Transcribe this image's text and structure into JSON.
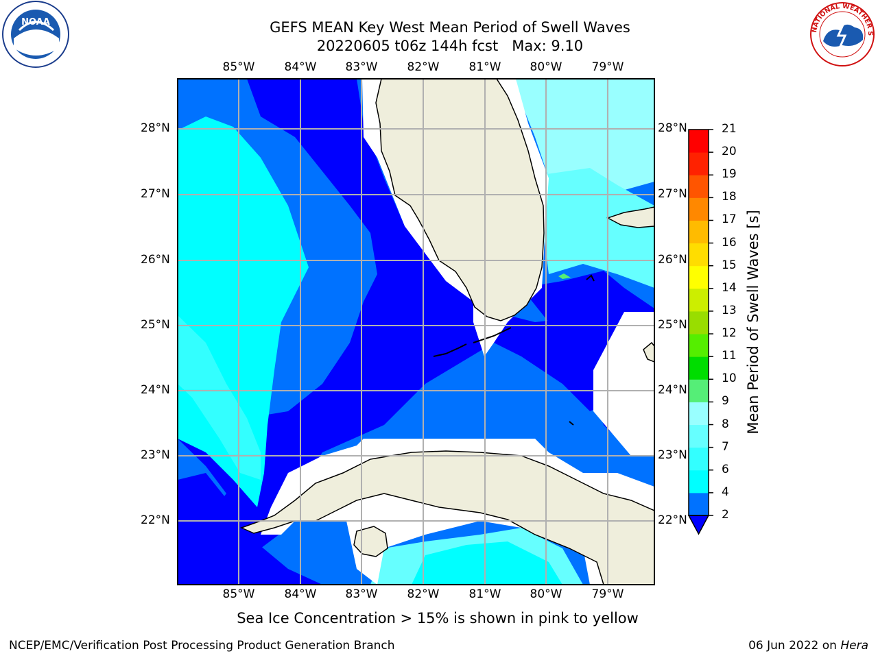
{
  "title": {
    "line1": "GEFS MEAN Key West Mean Period of Swell Waves",
    "line2": "20220605 t06z 144h fcst   Max: 9.10"
  },
  "map": {
    "lon_ticks": [
      "85°W",
      "84°W",
      "83°W",
      "82°W",
      "81°W",
      "80°W",
      "79°W"
    ],
    "lat_ticks": [
      "28°N",
      "27°N",
      "26°N",
      "25°N",
      "24°N",
      "23°N",
      "22°N"
    ],
    "lon_range": [
      -86.0,
      -78.25
    ],
    "lat_range": [
      21.0,
      28.75
    ]
  },
  "colorbar": {
    "title": "Mean Period of Swell Waves [s]",
    "ticks": [
      "2",
      "4",
      "6",
      "7",
      "8",
      "9",
      "10",
      "11",
      "12",
      "13",
      "14",
      "15",
      "16",
      "17",
      "18",
      "19",
      "20",
      "21"
    ],
    "colors": [
      "#0000ff",
      "#0072ff",
      "#00ffff",
      "#33ffff",
      "#66ffff",
      "#99ffff",
      "#55ee77",
      "#00dd00",
      "#55ee00",
      "#99dd00",
      "#ccee00",
      "#ffff00",
      "#ffdd00",
      "#ffbb00",
      "#ff8800",
      "#ff5500",
      "#ff2200",
      "#ff0000"
    ]
  },
  "note": "Sea Ice Concentration > 15% is shown in pink to yellow",
  "footer": {
    "left": "NCEP/EMC/Verification Post Processing Product Generation Branch",
    "date": "06 Jun 2022 on ",
    "host": "Hera"
  },
  "logos": {
    "noaa_text": "NOAA",
    "nws_text": "NATIONAL WEATHER SERVICE"
  }
}
